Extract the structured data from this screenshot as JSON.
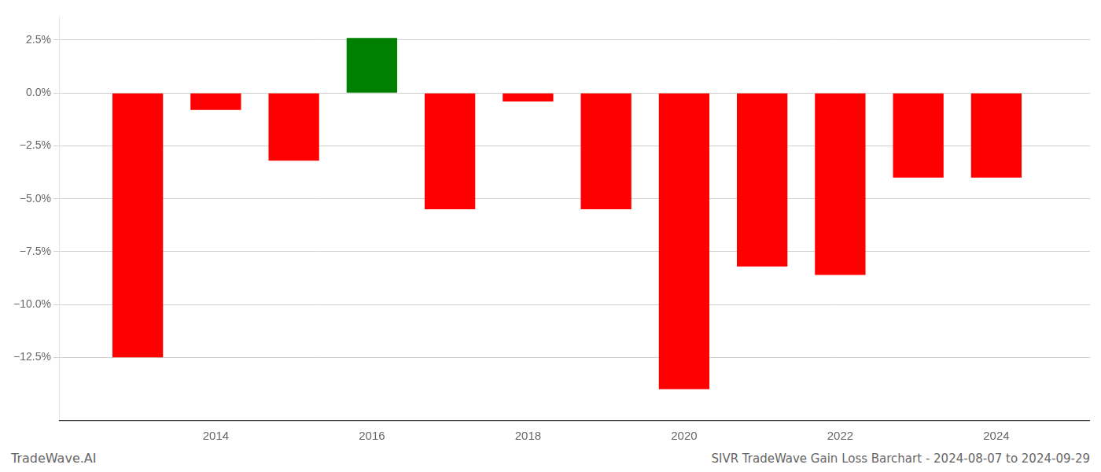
{
  "chart_data": {
    "type": "bar",
    "title": "SIVR TradeWave Gain Loss Barchart - 2024-08-07 to 2024-09-29",
    "annotations": [
      "TradeWave.AI"
    ],
    "x": [
      2013,
      2014,
      2015,
      2016,
      2017,
      2018,
      2019,
      2020,
      2021,
      2022,
      2023,
      2024
    ],
    "values": [
      -0.125,
      -0.008,
      -0.032,
      0.026,
      -0.055,
      -0.004,
      -0.055,
      -0.14,
      -0.082,
      -0.086,
      -0.04,
      -0.04
    ],
    "colors": [
      "#ff0000",
      "#ff0000",
      "#ff0000",
      "#008000",
      "#ff0000",
      "#ff0000",
      "#ff0000",
      "#ff0000",
      "#ff0000",
      "#ff0000",
      "#ff0000",
      "#ff0000"
    ],
    "xlim": [
      2012.0,
      2025.2
    ],
    "xticks": [
      2014,
      2016,
      2018,
      2020,
      2022,
      2024
    ],
    "ylim": [
      -0.155,
      0.036
    ],
    "yticks": [
      {
        "value": -0.125,
        "label": "−12.5%"
      },
      {
        "value": -0.1,
        "label": "−10.0%"
      },
      {
        "value": -0.075,
        "label": "−7.5%"
      },
      {
        "value": -0.05,
        "label": "−5.0%"
      },
      {
        "value": -0.025,
        "label": "−2.5%"
      },
      {
        "value": 0.0,
        "label": "0.0%"
      },
      {
        "value": 0.025,
        "label": "2.5%"
      }
    ],
    "grid": "y"
  }
}
